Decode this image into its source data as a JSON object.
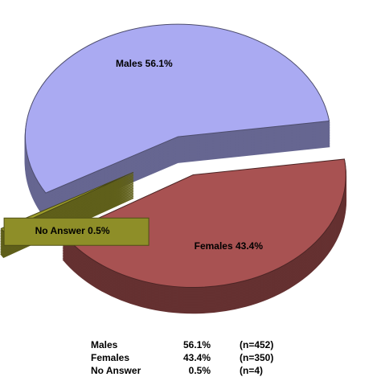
{
  "chart_data": {
    "type": "pie",
    "categories": [
      "Males",
      "Females",
      "No Answer"
    ],
    "values": [
      56.1,
      43.4,
      0.5
    ],
    "value_labels": [
      "56.1%",
      "43.4%",
      "0.5%"
    ],
    "counts": [
      452,
      350,
      4
    ],
    "count_labels": [
      "(n=452)",
      "(n=350)",
      "(n=4)"
    ],
    "colors": [
      "#aaaaf2",
      "#a85252",
      "#9e9e2c"
    ]
  }
}
